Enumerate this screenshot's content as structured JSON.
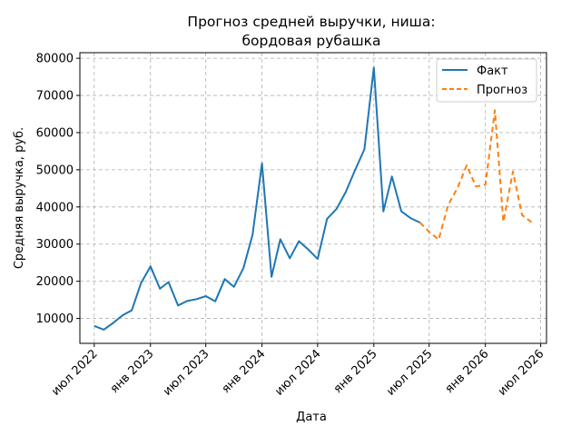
{
  "chart_data": {
    "type": "line",
    "title": "Прогноз средней выручки, ниша:\nбордовая рубашка",
    "xlabel": "Дата",
    "ylabel": "Средняя выручка, руб.",
    "ylim": [
      3300,
      81500
    ],
    "xlim": [
      "2022-05-15",
      "2026-07-20"
    ],
    "yticks": [
      10000,
      20000,
      30000,
      40000,
      50000,
      60000,
      70000,
      80000
    ],
    "xticks": [
      {
        "date": "2022-07-01",
        "label": "июл 2022"
      },
      {
        "date": "2023-01-01",
        "label": "янв 2023"
      },
      {
        "date": "2023-07-01",
        "label": "июл 2023"
      },
      {
        "date": "2024-01-01",
        "label": "янв 2024"
      },
      {
        "date": "2024-07-01",
        "label": "июл 2024"
      },
      {
        "date": "2025-01-01",
        "label": "янв 2025"
      },
      {
        "date": "2025-07-01",
        "label": "июл 2025"
      },
      {
        "date": "2026-01-01",
        "label": "янв 2026"
      },
      {
        "date": "2026-07-01",
        "label": "июл 2026"
      }
    ],
    "grid": true,
    "legend_position": "top-right",
    "series": [
      {
        "name": "Факт",
        "color": "#1f77b4",
        "style": "solid",
        "points": [
          [
            "2022-07-01",
            8000
          ],
          [
            "2022-08-01",
            7000
          ],
          [
            "2022-09-01",
            8800
          ],
          [
            "2022-10-01",
            10800
          ],
          [
            "2022-11-01",
            12200
          ],
          [
            "2022-12-01",
            19500
          ],
          [
            "2023-01-01",
            24000
          ],
          [
            "2023-02-01",
            18000
          ],
          [
            "2023-03-01",
            19800
          ],
          [
            "2023-04-01",
            13500
          ],
          [
            "2023-05-01",
            14700
          ],
          [
            "2023-06-01",
            15200
          ],
          [
            "2023-07-01",
            16000
          ],
          [
            "2023-08-01",
            14600
          ],
          [
            "2023-09-01",
            20600
          ],
          [
            "2023-10-01",
            18500
          ],
          [
            "2023-11-01",
            23500
          ],
          [
            "2023-12-01",
            32500
          ],
          [
            "2024-01-01",
            51700
          ],
          [
            "2024-02-01",
            21200
          ],
          [
            "2024-03-01",
            31300
          ],
          [
            "2024-04-01",
            26200
          ],
          [
            "2024-05-01",
            30800
          ],
          [
            "2024-06-01",
            28500
          ],
          [
            "2024-07-01",
            26000
          ],
          [
            "2024-08-01",
            36800
          ],
          [
            "2024-09-01",
            39500
          ],
          [
            "2024-10-01",
            44000
          ],
          [
            "2024-11-01",
            50000
          ],
          [
            "2024-12-01",
            55500
          ],
          [
            "2025-01-01",
            77500
          ],
          [
            "2025-02-01",
            38800
          ],
          [
            "2025-03-01",
            48200
          ],
          [
            "2025-04-01",
            38800
          ],
          [
            "2025-05-01",
            37000
          ],
          [
            "2025-06-01",
            35800
          ]
        ]
      },
      {
        "name": "Прогноз",
        "color": "#ff7f0e",
        "style": "dashed",
        "points": [
          [
            "2025-06-01",
            35800
          ],
          [
            "2025-07-01",
            33300
          ],
          [
            "2025-08-01",
            31200
          ],
          [
            "2025-09-01",
            40500
          ],
          [
            "2025-10-01",
            45000
          ],
          [
            "2025-11-01",
            51200
          ],
          [
            "2025-12-01",
            45500
          ],
          [
            "2026-01-01",
            46000
          ],
          [
            "2026-02-01",
            66000
          ],
          [
            "2026-03-01",
            36000
          ],
          [
            "2026-04-01",
            49500
          ],
          [
            "2026-05-01",
            37800
          ],
          [
            "2026-06-01",
            35900
          ]
        ]
      }
    ]
  }
}
